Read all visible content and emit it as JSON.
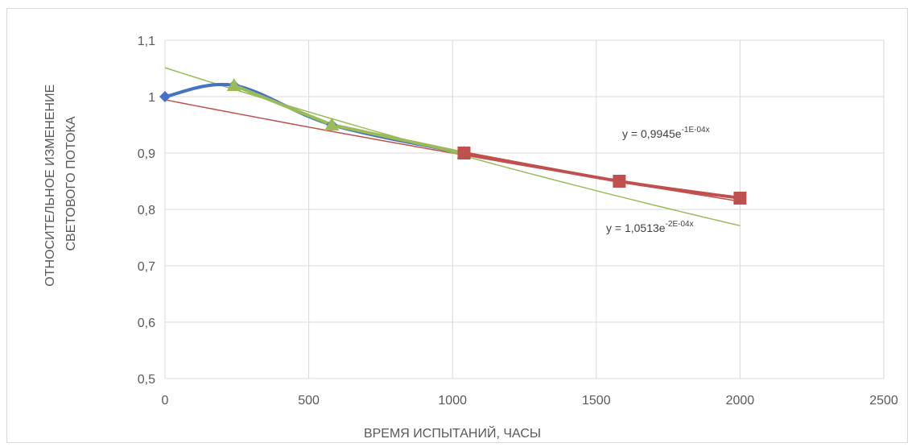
{
  "chart_data": {
    "type": "line",
    "xlabel": "ВРЕМЯ ИСПЫТАНИЙ, ЧАСЫ",
    "ylabel_lines": [
      "ОТНОСИТЕЛЬНОЕ ИЗМЕНЕНИЕ",
      "СВЕТОВОГО ПОТОКА"
    ],
    "xlim": [
      0,
      2500
    ],
    "ylim": [
      0.5,
      1.1
    ],
    "x_ticks": [
      0,
      500,
      1000,
      1500,
      2000,
      2500
    ],
    "x_tick_labels": [
      "0",
      "500",
      "1000",
      "1500",
      "2000",
      "2500"
    ],
    "y_ticks": [
      0.5,
      0.6,
      0.7,
      0.8,
      0.9,
      1.0,
      1.1
    ],
    "y_tick_labels": [
      "0,5",
      "0,6",
      "0,7",
      "0,8",
      "0,9",
      "1",
      "1,1"
    ],
    "grid": true,
    "series": [
      {
        "color": "#4472c4",
        "marker": "diamond",
        "smooth": true,
        "x": [
          0,
          240,
          580,
          1040
        ],
        "y": [
          1.0,
          1.02,
          0.95,
          0.9
        ]
      },
      {
        "color": "#9bbb59",
        "marker": "triangle",
        "smooth": false,
        "x": [
          240,
          580,
          1040
        ],
        "y": [
          1.02,
          0.95,
          0.9
        ]
      },
      {
        "color": "#c0504d",
        "marker": "square",
        "smooth": true,
        "x": [
          1040,
          1580,
          2000
        ],
        "y": [
          0.9,
          0.85,
          0.82
        ]
      }
    ],
    "trendlines": [
      {
        "color": "#c0504d",
        "a": 0.9945,
        "b": -0.0001,
        "x_range": [
          0,
          2000
        ],
        "label_base": "y = 0,9945e",
        "label_exp": "-1E-04x"
      },
      {
        "color": "#9bbb59",
        "a": 1.0513,
        "b": -0.000155,
        "x_range": [
          0,
          2000
        ],
        "label_base": "y = 1,0513e",
        "label_exp": "-2E-04x"
      }
    ]
  }
}
